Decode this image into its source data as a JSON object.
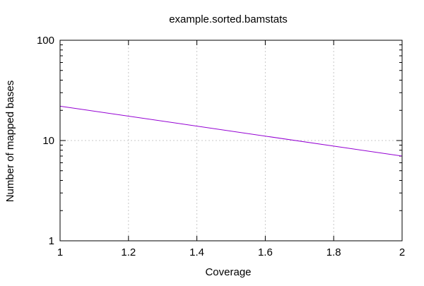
{
  "chart_data": {
    "type": "line",
    "title": "example.sorted.bamstats",
    "xlabel": "Coverage",
    "ylabel": "Number of mapped bases",
    "x_scale": "linear",
    "y_scale": "log",
    "xlim": [
      1,
      2
    ],
    "ylim": [
      1,
      100
    ],
    "x_ticks": [
      "1",
      "1.2",
      "1.4",
      "1.6",
      "1.8",
      "2"
    ],
    "x_tick_values": [
      1,
      1.2,
      1.4,
      1.6,
      1.8,
      2
    ],
    "y_ticks": [
      "1",
      "10",
      "100"
    ],
    "y_tick_values": [
      1,
      10,
      100
    ],
    "grid": true,
    "legend": "none",
    "series": [
      {
        "color": "#9400D3",
        "x": [
          1,
          2
        ],
        "y": [
          22,
          7
        ]
      }
    ]
  }
}
